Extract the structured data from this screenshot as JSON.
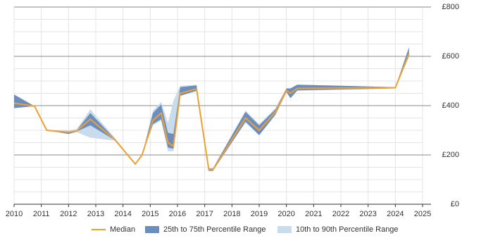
{
  "chart_data": {
    "type": "line",
    "x": [
      2010.0,
      2010.75,
      2011.2,
      2012.0,
      2012.3,
      2012.8,
      2013.7,
      2014.45,
      2014.7,
      2015.1,
      2015.4,
      2015.65,
      2015.85,
      2016.1,
      2016.7,
      2017.15,
      2017.3,
      2018.5,
      2019.0,
      2019.6,
      2020.0,
      2020.15,
      2020.4,
      2024.0,
      2024.5
    ],
    "series": [
      {
        "name": "Median",
        "color": "#f0a030",
        "values": [
          410,
          398,
          300,
          292,
          298,
          345,
          262,
          163,
          200,
          340,
          370,
          250,
          235,
          450,
          468,
          140,
          140,
          350,
          300,
          375,
          462,
          450,
          470,
          473,
          610
        ]
      },
      {
        "name": "25th to 75th Percentile Range",
        "color": "#6b8ebe",
        "lower": [
          390,
          398,
          300,
          285,
          295,
          320,
          260,
          163,
          200,
          325,
          345,
          230,
          225,
          440,
          460,
          135,
          135,
          335,
          280,
          365,
          455,
          430,
          462,
          470,
          600
        ],
        "upper": [
          445,
          398,
          300,
          295,
          300,
          370,
          265,
          163,
          200,
          370,
          405,
          290,
          285,
          475,
          482,
          145,
          145,
          375,
          320,
          385,
          470,
          470,
          485,
          475,
          635
        ]
      },
      {
        "name": "10th to 90th Percentile Range",
        "color": "#c9dcee",
        "lower": [
          390,
          398,
          300,
          285,
          292,
          270,
          258,
          163,
          200,
          320,
          340,
          215,
          215,
          440,
          460,
          135,
          135,
          330,
          280,
          360,
          455,
          430,
          460,
          470,
          600
        ],
        "upper": [
          445,
          398,
          300,
          300,
          305,
          385,
          270,
          163,
          200,
          380,
          415,
          330,
          420,
          480,
          485,
          145,
          145,
          380,
          325,
          390,
          470,
          470,
          485,
          475,
          640
        ]
      }
    ],
    "xlim": [
      2010,
      2025
    ],
    "xticks": [
      2010,
      2011,
      2012,
      2013,
      2014,
      2015,
      2016,
      2017,
      2018,
      2019,
      2020,
      2021,
      2022,
      2023,
      2024,
      2025
    ],
    "ylim": [
      0,
      800
    ],
    "yticks": [
      {
        "value": 0,
        "label": "£0"
      },
      {
        "value": 200,
        "label": "£200"
      },
      {
        "value": 400,
        "label": "£400"
      },
      {
        "value": 600,
        "label": "£600"
      },
      {
        "value": 800,
        "label": "£800"
      }
    ],
    "grid": true
  }
}
